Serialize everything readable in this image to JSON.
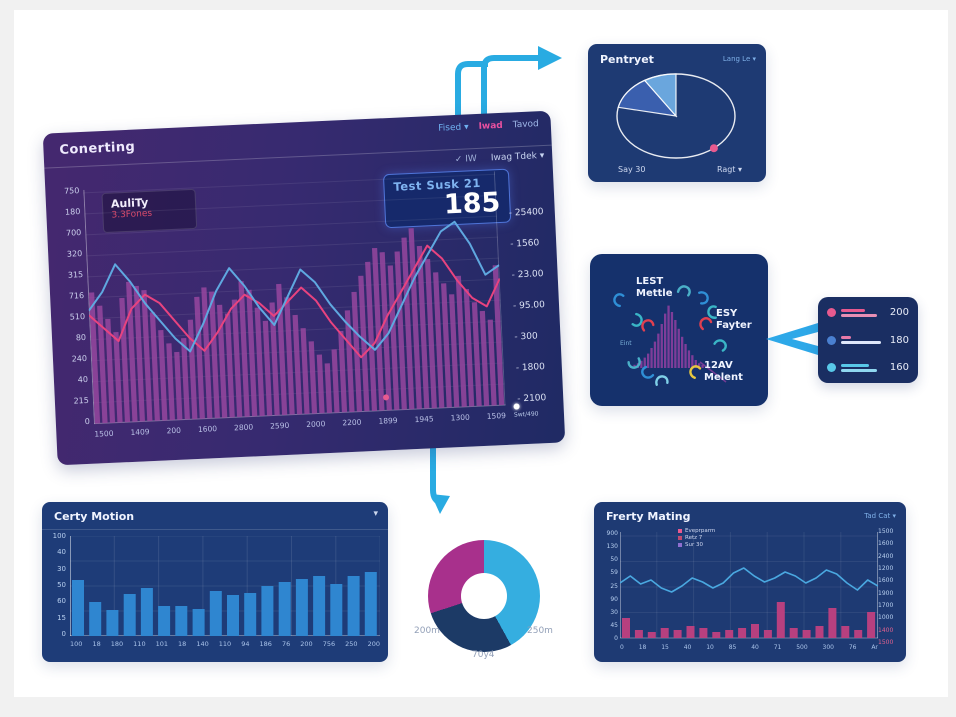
{
  "colors": {
    "accent_blue": "#29abe2",
    "pink": "#e8437f",
    "bar_purple": "#97479f",
    "panel_navy": "#1e3a73",
    "bar_blue": "#2f86d0"
  },
  "main_panel": {
    "title": "Conerting",
    "control_fised": "Fised ▾",
    "control_iwad": "Iwad",
    "control_tavod": "Tavod",
    "control_check": "✓ IW",
    "control_dropdown": "Iwag Tdek ▾",
    "stat_label": "Test Susk 21",
    "stat_value": "185",
    "info_title": "AuliTy",
    "info_subtitle": "3.3Fones",
    "slider_label": "Swt/490"
  },
  "pie_panel": {
    "title": "Pentryet",
    "control": "Lang Le ▾",
    "footer_left": "Say 30",
    "footer_right": "Ragt ▾"
  },
  "icons_panel": {
    "label_1_line1": "LEST",
    "label_1_line2": "Mettle",
    "label_2_line1": "ESY",
    "label_2_line2": "Fayter",
    "label_3_line1": "12AV",
    "label_3_line2": "Melent",
    "side_text": "Eint",
    "scatter": [
      {
        "x": 30,
        "y": 46,
        "color": "#2f8fd6",
        "rot": -30,
        "name": "lest-mettle-icon"
      },
      {
        "x": 46,
        "y": 66,
        "color": "#3ab5c6",
        "rot": 150,
        "name": "squiggle-icon"
      },
      {
        "x": 58,
        "y": 72,
        "color": "#e04050",
        "rot": 10,
        "name": "squiggle-icon"
      },
      {
        "x": 94,
        "y": 38,
        "color": "#4ab0c8",
        "rot": 60,
        "name": "squiggle-icon"
      },
      {
        "x": 112,
        "y": 44,
        "color": "#2f8fd6",
        "rot": 120,
        "name": "squiggle-icon"
      },
      {
        "x": 124,
        "y": 58,
        "color": "#3ab5c6",
        "rot": -50,
        "name": "squiggle-icon"
      },
      {
        "x": 116,
        "y": 70,
        "color": "#e04050",
        "rot": 0,
        "name": "esy-fayter-icon"
      },
      {
        "x": 130,
        "y": 92,
        "color": "#3ab5c6",
        "rot": 80,
        "name": "squiggle-icon"
      },
      {
        "x": 44,
        "y": 108,
        "color": "#4ab0c8",
        "rot": -160,
        "name": "squiggle-icon"
      },
      {
        "x": 58,
        "y": 118,
        "color": "#2f8fd6",
        "rot": -90,
        "name": "squiggle-icon"
      },
      {
        "x": 72,
        "y": 128,
        "color": "#7fd0e8",
        "rot": 30,
        "name": "squiggle-icon"
      },
      {
        "x": 106,
        "y": 118,
        "color": "#e8c840",
        "rot": -20,
        "name": "melent-icon"
      }
    ]
  },
  "bl_panel": {
    "title": "Certy Motion",
    "collapse_icon": "▾"
  },
  "br_panel": {
    "title": "Frerty Mating",
    "control": "Tad Cat ▾",
    "legend": [
      {
        "label": "Eveprparm",
        "color": "#e85a8f"
      },
      {
        "label": "Retz 7",
        "color": "#c04a6f"
      },
      {
        "label": "Sur 30",
        "color": "#8f6fd0"
      }
    ]
  },
  "donut_labels": {
    "left": "200m",
    "right": "250m",
    "bottom": "70y4"
  },
  "chart_data": [
    {
      "id": "main-combo",
      "type": "bar",
      "title": "Conerting",
      "x_labels": [
        "1500",
        "1409",
        "200",
        "1600",
        "2800",
        "2590",
        "2000",
        "2200",
        "1899",
        "1945",
        "1300",
        "1509"
      ],
      "y_left_ticks": [
        "750",
        "180",
        "700",
        "320",
        "315",
        "716",
        "510",
        "80",
        "240",
        "40",
        "215",
        "0"
      ],
      "y_right_ticks": [
        "25400",
        "1560",
        "23.00",
        "95.00",
        "300",
        "1800",
        "2100"
      ],
      "ylim": [
        0,
        100
      ],
      "grid": true,
      "bar_color": "#97479f",
      "bar_values": [
        58,
        52,
        46,
        40,
        55,
        62,
        60,
        58,
        48,
        40,
        34,
        30,
        36,
        44,
        54,
        58,
        56,
        50,
        46,
        52,
        60,
        56,
        48,
        42,
        50,
        58,
        52,
        44,
        38,
        32,
        26,
        22,
        28,
        36,
        45,
        53,
        60,
        66,
        72,
        70,
        64,
        70,
        76,
        80,
        72,
        66,
        60,
        55,
        50,
        58,
        52,
        46,
        42,
        38,
        62
      ],
      "series": [
        {
          "name": "pink-line",
          "color": "#e8437f",
          "values": [
            48,
            42,
            36,
            50,
            56,
            52,
            44,
            36,
            30,
            38,
            48,
            54,
            50,
            44,
            50,
            56,
            50,
            40,
            32,
            24,
            30,
            42,
            52,
            62,
            72,
            66,
            56,
            48,
            44,
            56
          ]
        },
        {
          "name": "blue-line",
          "color": "#5fa8e0",
          "values": [
            50,
            58,
            70,
            62,
            52,
            44,
            36,
            30,
            42,
            56,
            66,
            58,
            48,
            40,
            52,
            64,
            58,
            48,
            40,
            33,
            27,
            34,
            46,
            58,
            68,
            78,
            82,
            72,
            58,
            62
          ]
        }
      ]
    },
    {
      "id": "overview-pie",
      "type": "pie",
      "title": "Pentryet",
      "slices": [
        {
          "label": "light-blue-slice",
          "pct": 8,
          "color": "#6aa6dd"
        },
        {
          "label": "blue-slice",
          "pct": 13,
          "color": "#3a5fae"
        },
        {
          "label": "unfilled",
          "pct": 79,
          "color": "none"
        }
      ],
      "marker": {
        "label": "pink-dot",
        "color": "#e85a8f",
        "angle_deg": 140
      }
    },
    {
      "id": "icons-histogram",
      "type": "bar",
      "title": "",
      "values": [
        3,
        4,
        6,
        9,
        13,
        18,
        25,
        33,
        43,
        55,
        68,
        78,
        70,
        60,
        49,
        39,
        30,
        22,
        16,
        10,
        6,
        4
      ],
      "color": "#8a3f9e"
    },
    {
      "id": "callout-stats",
      "type": "table",
      "rows": [
        {
          "label": "metric-1",
          "value": "200",
          "color": "#e85a8f"
        },
        {
          "label": "metric-2",
          "value": "180",
          "color": "#4a80d0"
        },
        {
          "label": "metric-3",
          "value": "160",
          "color": "#58c8e8"
        }
      ]
    },
    {
      "id": "certy-motion-bars",
      "type": "bar",
      "title": "Certy Motion",
      "values": [
        56,
        34,
        26,
        42,
        48,
        30,
        30,
        27,
        45,
        41,
        43,
        50,
        54,
        57,
        60,
        52,
        60,
        64
      ],
      "x_labels": [
        "100",
        "18",
        "180",
        "110",
        "101",
        "18",
        "140",
        "110",
        "94",
        "186",
        "76",
        "200",
        "756",
        "250",
        "200"
      ],
      "y_ticks": [
        "100",
        "40",
        "30",
        "50",
        "60",
        "15",
        "0"
      ],
      "color": "#2f86d0",
      "ylim": [
        0,
        100
      ],
      "grid": true
    },
    {
      "id": "donut",
      "type": "pie",
      "labels": [
        "250m",
        "70y4",
        "200m"
      ],
      "values": [
        42,
        28,
        30
      ],
      "colors": [
        "#35aee0",
        "#1c3a66",
        "#a8308c"
      ]
    },
    {
      "id": "frerty-combo",
      "type": "line",
      "title": "Frerty Mating",
      "x_labels": [
        "0",
        "18",
        "15",
        "40",
        "10",
        "85",
        "40",
        "71",
        "500",
        "300",
        "76",
        "Ar"
      ],
      "y_left_ticks": [
        "900",
        "130",
        "50",
        "59",
        "25",
        "90",
        "30",
        "45",
        "0"
      ],
      "y_right_ticks": [
        "1500",
        "1600",
        "2400",
        "1200",
        "1600",
        "1900",
        "1700",
        "1000",
        "1400",
        "1500"
      ],
      "line_color": "#4aa8e0",
      "line_values": [
        55,
        62,
        54,
        58,
        50,
        46,
        52,
        60,
        56,
        50,
        55,
        65,
        70,
        62,
        56,
        60,
        66,
        62,
        55,
        60,
        68,
        64,
        55,
        48,
        58,
        52
      ],
      "bar_color": "#c0407f",
      "bar_values": [
        20,
        8,
        6,
        10,
        8,
        12,
        10,
        6,
        8,
        10,
        14,
        8,
        36,
        10,
        8,
        12,
        30,
        12,
        8,
        26
      ],
      "ylim": [
        0,
        100
      ],
      "grid": true
    }
  ]
}
